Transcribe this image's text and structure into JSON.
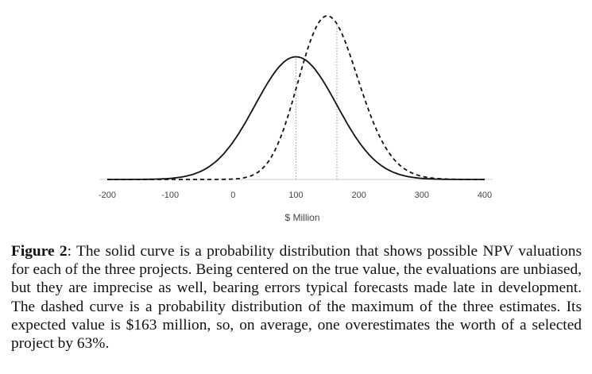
{
  "chart_data": {
    "type": "line",
    "xlabel": "$ Million",
    "ylabel": "",
    "xlim": [
      -200,
      400
    ],
    "x_ticks": [
      "-200",
      "-100",
      "0",
      "100",
      "200",
      "300",
      "400"
    ],
    "x_tick_values": [
      -200,
      -100,
      0,
      100,
      200,
      300,
      400
    ],
    "grid": false,
    "legend": "none",
    "series": [
      {
        "style": "solid",
        "distribution": "normal",
        "mean": 100,
        "sd": 65,
        "peak_density": 0.75,
        "color": "#111111"
      },
      {
        "style": "dashed",
        "distribution": "max-of-3-normals",
        "mean": 163,
        "mode": 165,
        "peak_density": 1.0,
        "color": "#111111"
      }
    ],
    "reference_lines": [
      {
        "x": 100,
        "style": "dotted",
        "color": "#999999"
      },
      {
        "x": 165,
        "style": "dotted",
        "color": "#999999"
      }
    ]
  },
  "caption": {
    "label": "Figure 2",
    "text": ": The solid curve is a probability distribution that shows possible NPV valuations for each of the three projects. Being centered on the true value, the evaluations are unbiased, but they are imprecise as well, bearing errors typical forecasts made late in development. The dashed curve is a probability distribution of the maximum of the three estimates. Its expected value is $163 million, so, on average, one overestimates the worth of a selected project by 63%."
  }
}
